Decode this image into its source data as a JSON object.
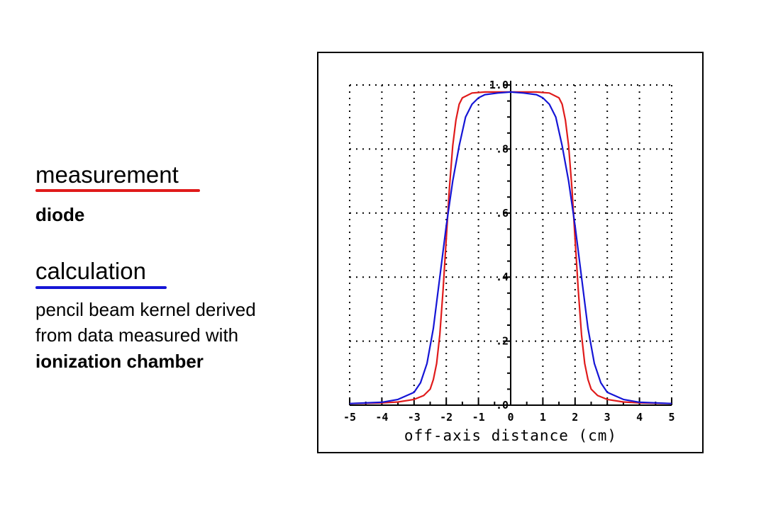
{
  "legend": {
    "measurement": {
      "heading": "measurement",
      "detail": "diode",
      "color": "#e01b1b"
    },
    "calculation": {
      "heading": "calculation",
      "detail_lines": [
        "pencil beam kernel derived",
        "from data measured with",
        "ionization chamber"
      ],
      "color": "#1515d6"
    }
  },
  "chart_data": {
    "type": "line",
    "xlabel": "off-axis distance (cm)",
    "ylabel": "",
    "xlim": [
      -5,
      5
    ],
    "ylim": [
      0,
      1.0
    ],
    "xticks": [
      -5,
      -4,
      -3,
      -2,
      -1,
      0,
      1,
      2,
      3,
      4,
      5
    ],
    "xtick_labels": [
      "-5",
      "-4",
      "-3",
      "-2",
      "-1",
      "0",
      "1",
      "2",
      "3",
      "4",
      "5"
    ],
    "yticks": [
      0,
      0.2,
      0.4,
      0.6,
      0.8,
      1.0
    ],
    "ytick_labels": [
      ".0",
      ".2",
      ".4",
      ".6",
      ".8",
      "1.0"
    ],
    "grid": true,
    "series": [
      {
        "key": "measurement",
        "color": "#e01b1b",
        "x": [
          -5,
          -4,
          -3.5,
          -3,
          -2.7,
          -2.5,
          -2.4,
          -2.3,
          -2.2,
          -2.1,
          -2,
          -1.9,
          -1.8,
          -1.7,
          -1.6,
          -1.5,
          -1.2,
          -0.8,
          -0.4,
          0,
          0.4,
          0.8,
          1.2,
          1.5,
          1.6,
          1.7,
          1.8,
          1.9,
          2,
          2.1,
          2.2,
          2.3,
          2.4,
          2.5,
          2.7,
          3,
          3.5,
          4,
          5
        ],
        "y": [
          0.005,
          0.007,
          0.01,
          0.018,
          0.03,
          0.05,
          0.08,
          0.13,
          0.22,
          0.36,
          0.52,
          0.68,
          0.81,
          0.89,
          0.94,
          0.96,
          0.975,
          0.978,
          0.978,
          0.978,
          0.978,
          0.978,
          0.975,
          0.96,
          0.94,
          0.89,
          0.81,
          0.68,
          0.52,
          0.36,
          0.22,
          0.13,
          0.08,
          0.05,
          0.03,
          0.018,
          0.01,
          0.007,
          0.005
        ]
      },
      {
        "key": "calculation",
        "color": "#1515d6",
        "x": [
          -5,
          -4,
          -3.5,
          -3,
          -2.8,
          -2.6,
          -2.4,
          -2.2,
          -2,
          -1.8,
          -1.6,
          -1.4,
          -1.2,
          -1,
          -0.8,
          -0.4,
          0,
          0.4,
          0.8,
          1,
          1.2,
          1.4,
          1.6,
          1.8,
          2,
          2.2,
          2.4,
          2.6,
          2.8,
          3,
          3.5,
          4,
          5
        ],
        "y": [
          0.005,
          0.009,
          0.018,
          0.04,
          0.07,
          0.13,
          0.24,
          0.4,
          0.56,
          0.7,
          0.81,
          0.9,
          0.94,
          0.96,
          0.97,
          0.975,
          0.978,
          0.975,
          0.97,
          0.96,
          0.94,
          0.9,
          0.81,
          0.7,
          0.56,
          0.4,
          0.24,
          0.13,
          0.07,
          0.04,
          0.018,
          0.009,
          0.005
        ]
      }
    ]
  }
}
